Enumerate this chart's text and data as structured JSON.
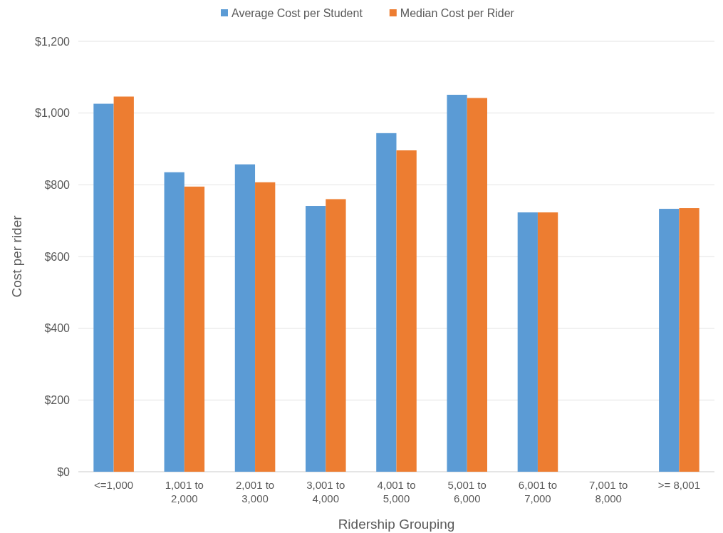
{
  "chart_data": {
    "type": "bar",
    "xlabel": "Ridership Grouping",
    "ylabel": "Cost per rider",
    "categories": [
      "<=1,000",
      "1,001 to 2,000",
      "2,001 to 3,000",
      "3,001 to 4,000",
      "4,001 to 5,000",
      "5,001 to 6,000",
      "6,001 to 7,000",
      "7,001 to 8,000",
      ">= 8,001"
    ],
    "series": [
      {
        "name": "Average Cost per Student",
        "color": "#5b9bd5",
        "values": [
          1026,
          835,
          857,
          741,
          944,
          1051,
          723,
          null,
          733
        ]
      },
      {
        "name": "Median Cost per Rider",
        "color": "#ed7d31",
        "values": [
          1046,
          795,
          807,
          760,
          896,
          1042,
          723,
          null,
          735
        ]
      }
    ],
    "ylim": [
      0,
      1200
    ],
    "yticks": [
      {
        "value": 0,
        "label": "$0"
      },
      {
        "value": 200,
        "label": "$200"
      },
      {
        "value": 400,
        "label": "$400"
      },
      {
        "value": 600,
        "label": "$600"
      },
      {
        "value": 800,
        "label": "$800"
      },
      {
        "value": 1000,
        "label": "$1,000"
      },
      {
        "value": 1200,
        "label": "$1,200"
      }
    ],
    "grid": "y",
    "legend": "top"
  }
}
